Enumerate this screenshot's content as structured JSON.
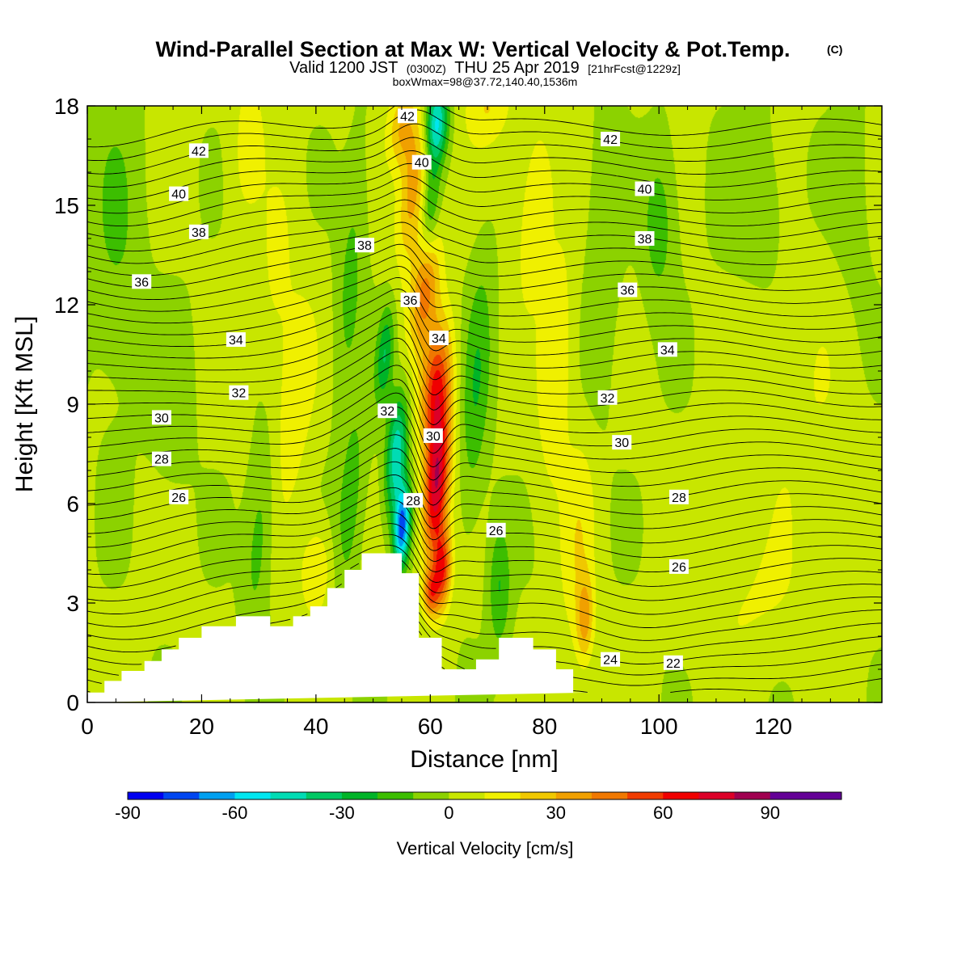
{
  "header": {
    "title": "Wind-Parallel Section at Max W: Vertical Velocity & Pot.Temp.",
    "title_mark": "(C)",
    "subtitle_a": "Valid 1200 JST",
    "subtitle_b": "(0300Z)",
    "subtitle_c": "THU 25 Apr 2019",
    "subtitle_d": "[21hrFcst@1229z]",
    "subtitle3": "boxWmax=98@37.72,140.40,1536m"
  },
  "chart_data": {
    "type": "heatmap",
    "xlabel": "Distance [nm]",
    "ylabel": "Height [Kft MSL]",
    "xlim": [
      0,
      139
    ],
    "ylim": [
      0,
      18
    ],
    "x_ticks": [
      0,
      20,
      40,
      60,
      80,
      100,
      120
    ],
    "x_tick_labels": [
      "0",
      "20",
      "40",
      "60",
      "80",
      "100",
      "120"
    ],
    "y_ticks": [
      0,
      3,
      6,
      9,
      12,
      15,
      18
    ],
    "y_tick_labels": [
      "0",
      "3",
      "6",
      "9",
      "12",
      "15",
      "18"
    ],
    "colorbar": {
      "title": "Vertical Velocity [cm/s]",
      "min": -90,
      "max": 110,
      "step": 10,
      "tick_values": [
        -90,
        -60,
        -30,
        0,
        30,
        60,
        90
      ],
      "tick_labels": [
        "-90",
        "-60",
        "-30",
        "0",
        "30",
        "60",
        "90"
      ],
      "colors": [
        "#0000f0",
        "#0046f0",
        "#00a0f0",
        "#00e6f0",
        "#00dcb4",
        "#00c864",
        "#00b428",
        "#3cbe00",
        "#8cd200",
        "#c8e600",
        "#f0f000",
        "#f0c800",
        "#f0a000",
        "#f07800",
        "#f03c00",
        "#f00000",
        "#dc0028",
        "#a00050",
        "#640096",
        "#640096"
      ]
    },
    "terrain_profile": {
      "x": [
        0,
        3,
        3,
        6,
        6,
        10,
        10,
        13,
        13,
        16,
        16,
        20,
        20,
        26,
        26,
        32,
        32,
        36,
        36,
        39,
        39,
        42,
        42,
        45,
        45,
        48,
        48,
        55,
        55,
        58,
        58,
        62,
        62,
        68,
        68,
        72,
        72,
        78,
        78,
        82,
        82,
        85,
        85,
        88,
        88,
        139
      ],
      "y": [
        0.3,
        0.3,
        0.65,
        0.65,
        0.95,
        0.95,
        1.25,
        1.25,
        1.6,
        1.6,
        1.95,
        1.95,
        2.3,
        2.3,
        2.6,
        2.6,
        2.3,
        2.3,
        2.6,
        2.6,
        2.9,
        2.9,
        3.45,
        3.45,
        4.0,
        4.0,
        4.5,
        4.5,
        3.9,
        3.9,
        1.95,
        1.95,
        1.0,
        1.0,
        1.3,
        1.3,
        1.95,
        1.95,
        1.6,
        1.6,
        1.0,
        1.0,
        0.3,
        0.3,
        0.3
      ]
    },
    "w_features": [
      {
        "x": 61,
        "y": 6.5,
        "sx": 2.2,
        "sy": 2.2,
        "tilt": 0.4,
        "w": 75
      },
      {
        "x": 61,
        "y": 9.5,
        "sx": 2.6,
        "sy": 2.0,
        "tilt": 0.4,
        "w": 55
      },
      {
        "x": 59,
        "y": 12.5,
        "sx": 2.4,
        "sy": 1.8,
        "tilt": 0.6,
        "w": 40
      },
      {
        "x": 57,
        "y": 15.5,
        "sx": 2.4,
        "sy": 2.2,
        "tilt": 0.6,
        "w": 35
      },
      {
        "x": 55,
        "y": 17.3,
        "sx": 2.5,
        "sy": 1.2,
        "tilt": 0.3,
        "w": 28
      },
      {
        "x": 62,
        "y": 4.0,
        "sx": 1.6,
        "sy": 1.2,
        "tilt": 0.2,
        "w": 55
      },
      {
        "x": 60,
        "y": 3.3,
        "sx": 1.3,
        "sy": 0.7,
        "tilt": 0.0,
        "w": 40
      },
      {
        "x": 55,
        "y": 5.3,
        "sx": 1.4,
        "sy": 1.2,
        "tilt": 0.3,
        "w": -75
      },
      {
        "x": 54,
        "y": 7.5,
        "sx": 1.8,
        "sy": 1.8,
        "tilt": 0.4,
        "w": -50
      },
      {
        "x": 52,
        "y": 10.5,
        "sx": 1.5,
        "sy": 1.5,
        "tilt": 0.4,
        "w": -30
      },
      {
        "x": 61,
        "y": 17.5,
        "sx": 2.0,
        "sy": 1.2,
        "tilt": 0.2,
        "w": -55
      },
      {
        "x": 60,
        "y": 15.0,
        "sx": 1.5,
        "sy": 1.5,
        "tilt": 0.3,
        "w": -25
      },
      {
        "x": 86,
        "y": 5.0,
        "sx": 3.0,
        "sy": 3.5,
        "tilt": 0.3,
        "w": 15
      },
      {
        "x": 87,
        "y": 2.5,
        "sx": 1.5,
        "sy": 1.3,
        "tilt": 0.1,
        "w": 30
      },
      {
        "x": 82,
        "y": 10.0,
        "sx": 3.0,
        "sy": 3.5,
        "tilt": 0.3,
        "w": 18
      },
      {
        "x": 78,
        "y": 15.0,
        "sx": 3.5,
        "sy": 3.0,
        "tilt": 0.3,
        "w": 15
      },
      {
        "x": 70,
        "y": 18.0,
        "sx": 4.0,
        "sy": 1.2,
        "tilt": 0.2,
        "w": 18
      },
      {
        "x": 36,
        "y": 9.0,
        "sx": 3.5,
        "sy": 3.5,
        "tilt": 0.4,
        "w": 15
      },
      {
        "x": 40,
        "y": 4.0,
        "sx": 2.8,
        "sy": 1.4,
        "tilt": 0.2,
        "w": 20
      },
      {
        "x": 33,
        "y": 13.0,
        "sx": 3.0,
        "sy": 3.0,
        "tilt": 0.4,
        "w": 10
      },
      {
        "x": 28,
        "y": 17.0,
        "sx": 3.0,
        "sy": 2.5,
        "tilt": 0.3,
        "w": 12
      },
      {
        "x": 46,
        "y": 6.0,
        "sx": 2.5,
        "sy": 3.0,
        "tilt": 0.4,
        "w": -18
      },
      {
        "x": 30,
        "y": 5.0,
        "sx": 2.5,
        "sy": 3.0,
        "tilt": 0.4,
        "w": -18
      },
      {
        "x": 46,
        "y": 13.0,
        "sx": 2.5,
        "sy": 4.0,
        "tilt": 0.4,
        "w": -15
      },
      {
        "x": 68,
        "y": 9.5,
        "sx": 2.5,
        "sy": 4.0,
        "tilt": 0.3,
        "w": -20
      },
      {
        "x": 72,
        "y": 3.5,
        "sx": 2.0,
        "sy": 2.0,
        "tilt": 0.0,
        "w": -22
      },
      {
        "x": 90,
        "y": 13.0,
        "sx": 3.0,
        "sy": 5.0,
        "tilt": 0.2,
        "w": -12
      },
      {
        "x": 100,
        "y": 14.5,
        "sx": 3.0,
        "sy": 2.5,
        "tilt": 0.1,
        "w": -18
      },
      {
        "x": 5,
        "y": 14.0,
        "sx": 5.0,
        "sy": 5.0,
        "tilt": 0.0,
        "w": -12
      },
      {
        "x": 15,
        "y": 9.0,
        "sx": 4.0,
        "sy": 3.0,
        "tilt": 0.2,
        "w": -8
      },
      {
        "x": 115,
        "y": 3.0,
        "sx": 10.0,
        "sy": 2.0,
        "tilt": 0.0,
        "w": 8
      },
      {
        "x": 125,
        "y": 9.0,
        "sx": 10.0,
        "sy": 5.0,
        "tilt": 0.0,
        "w": 7
      },
      {
        "x": 118,
        "y": 15.0,
        "sx": 8.0,
        "sy": 3.0,
        "tilt": 0.0,
        "w": -8
      },
      {
        "x": 134,
        "y": 14.0,
        "sx": 4.0,
        "sy": 5.0,
        "tilt": 0.0,
        "w": -6
      }
    ],
    "theta_levels": [
      22,
      24,
      26,
      28,
      30,
      32,
      34,
      36,
      38,
      40,
      42
    ],
    "theta_label_values": [
      "42",
      "40",
      "38",
      "36",
      "34",
      "32",
      "30",
      "28",
      "26",
      "42",
      "40",
      "38",
      "36",
      "34",
      "32",
      "30",
      "28",
      "26",
      "24",
      "22",
      "42",
      "40",
      "38",
      "36",
      "34",
      "32",
      "30",
      "28",
      "26"
    ],
    "theta_labels": [
      {
        "value": "42",
        "x": 19.5,
        "y": 16.65
      },
      {
        "value": "40",
        "x": 16.0,
        "y": 15.35
      },
      {
        "value": "38",
        "x": 19.5,
        "y": 14.2
      },
      {
        "value": "36",
        "x": 9.5,
        "y": 12.7
      },
      {
        "value": "34",
        "x": 26.0,
        "y": 10.95
      },
      {
        "value": "32",
        "x": 26.5,
        "y": 9.35
      },
      {
        "value": "30",
        "x": 13.0,
        "y": 8.6
      },
      {
        "value": "28",
        "x": 13.0,
        "y": 7.35
      },
      {
        "value": "26",
        "x": 16.0,
        "y": 6.2
      },
      {
        "value": "42",
        "x": 56.0,
        "y": 17.7
      },
      {
        "value": "40",
        "x": 58.5,
        "y": 16.3
      },
      {
        "value": "38",
        "x": 48.5,
        "y": 13.8
      },
      {
        "value": "36",
        "x": 56.5,
        "y": 12.15
      },
      {
        "value": "34",
        "x": 61.5,
        "y": 11.0
      },
      {
        "value": "32",
        "x": 52.5,
        "y": 8.8
      },
      {
        "value": "30",
        "x": 60.5,
        "y": 8.05
      },
      {
        "value": "28",
        "x": 57.0,
        "y": 6.1
      },
      {
        "value": "26",
        "x": 71.5,
        "y": 5.2
      },
      {
        "value": "42",
        "x": 91.5,
        "y": 17.0
      },
      {
        "value": "40",
        "x": 97.5,
        "y": 15.5
      },
      {
        "value": "38",
        "x": 97.5,
        "y": 14.0
      },
      {
        "value": "36",
        "x": 94.5,
        "y": 12.45
      },
      {
        "value": "34",
        "x": 101.5,
        "y": 10.65
      },
      {
        "value": "32",
        "x": 91.0,
        "y": 9.2
      },
      {
        "value": "30",
        "x": 93.5,
        "y": 7.85
      },
      {
        "value": "28",
        "x": 103.5,
        "y": 6.2
      },
      {
        "value": "26",
        "x": 103.5,
        "y": 4.1
      },
      {
        "value": "24",
        "x": 91.5,
        "y": 1.3
      },
      {
        "value": "22",
        "x": 102.5,
        "y": 1.2
      }
    ]
  }
}
